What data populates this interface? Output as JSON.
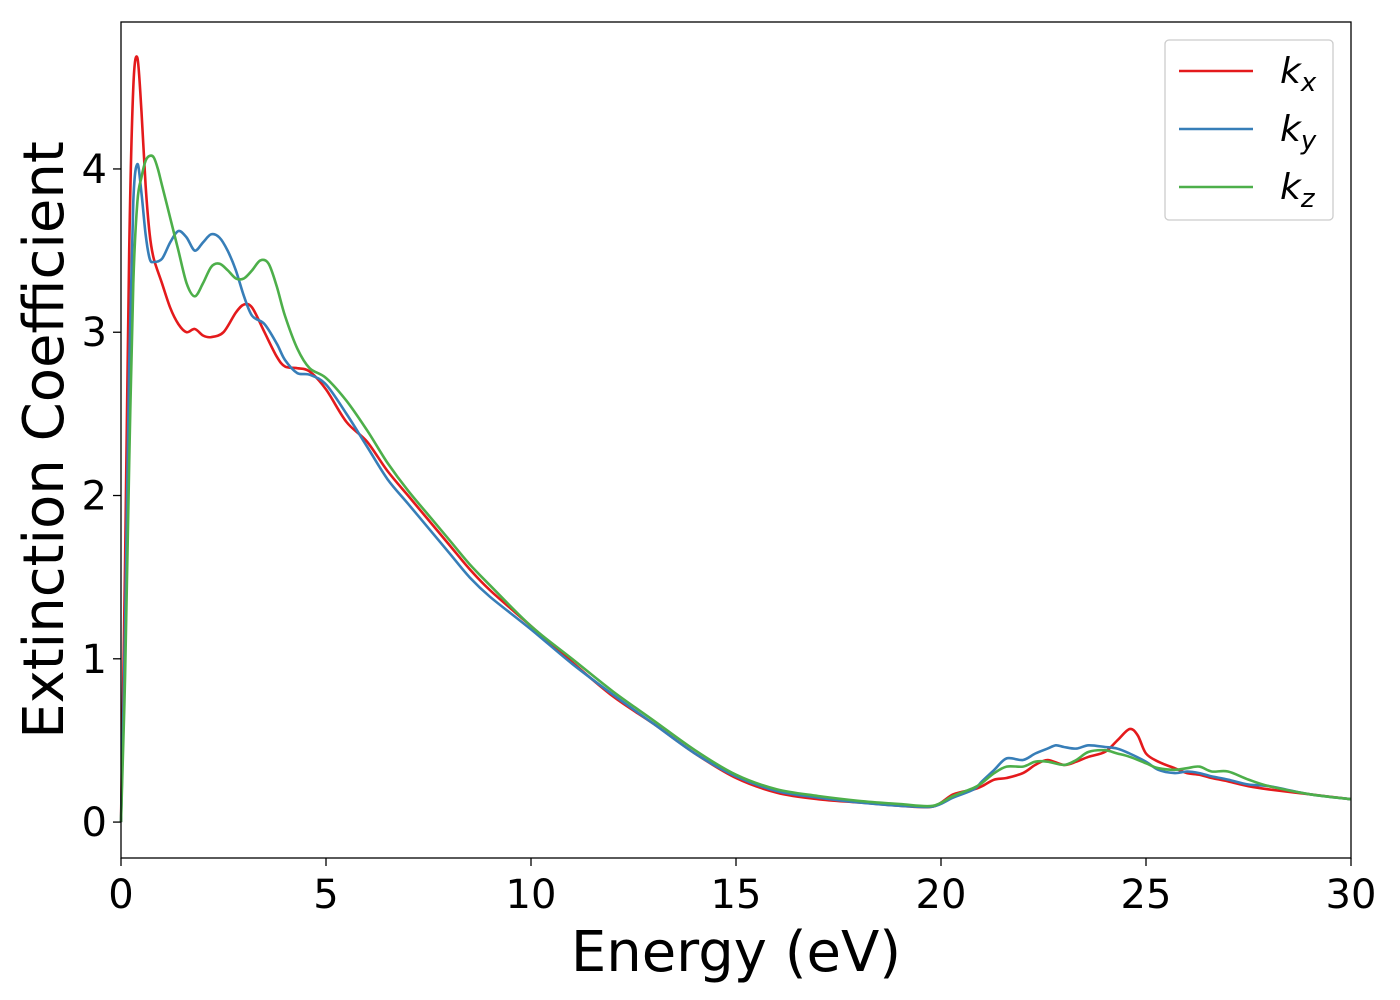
{
  "chart_data": {
    "type": "line",
    "xlabel": "Energy (eV)",
    "ylabel": "Extinction Coefficient",
    "xlim": [
      0,
      30
    ],
    "ylim": [
      -0.22,
      4.9
    ],
    "xticks": [
      0,
      5,
      10,
      15,
      20,
      25,
      30
    ],
    "xtick_labels": [
      "0",
      "5",
      "10",
      "15",
      "20",
      "25",
      "30"
    ],
    "yticks": [
      0,
      1,
      2,
      3,
      4
    ],
    "ytick_labels": [
      "0",
      "1",
      "2",
      "3",
      "4"
    ],
    "grid": false,
    "legend_position": "top-right",
    "series": [
      {
        "name": "kx",
        "label_main": "k",
        "label_sub": "x",
        "color": "#e41a1c",
        "x": [
          0,
          0.1,
          0.2,
          0.3,
          0.4,
          0.5,
          0.6,
          0.7,
          0.8,
          1.0,
          1.2,
          1.4,
          1.6,
          1.8,
          2.0,
          2.2,
          2.5,
          2.8,
          3.0,
          3.2,
          3.5,
          3.8,
          4.0,
          4.3,
          4.6,
          5.0,
          5.5,
          6.0,
          6.5,
          7.0,
          7.5,
          8.0,
          8.5,
          9.0,
          10.0,
          11.0,
          12.0,
          13.0,
          14.0,
          15.0,
          16.0,
          17.0,
          18.0,
          19.0,
          19.8,
          20.3,
          20.8,
          21.0,
          21.3,
          21.6,
          22.0,
          22.3,
          22.6,
          23.0,
          23.3,
          23.6,
          24.0,
          24.3,
          24.6,
          24.8,
          25.0,
          25.3,
          25.7,
          26.0,
          26.3,
          26.6,
          27.0,
          27.5,
          28.0,
          29.0,
          30.0
        ],
        "y": [
          0,
          1.6,
          3.5,
          4.5,
          4.68,
          4.35,
          3.9,
          3.6,
          3.45,
          3.3,
          3.15,
          3.05,
          3.0,
          3.02,
          2.98,
          2.97,
          3.0,
          3.12,
          3.17,
          3.15,
          3.0,
          2.85,
          2.79,
          2.78,
          2.76,
          2.65,
          2.45,
          2.33,
          2.15,
          2.0,
          1.85,
          1.7,
          1.55,
          1.42,
          1.2,
          0.98,
          0.77,
          0.6,
          0.42,
          0.27,
          0.18,
          0.14,
          0.12,
          0.1,
          0.095,
          0.17,
          0.2,
          0.22,
          0.26,
          0.27,
          0.3,
          0.35,
          0.38,
          0.35,
          0.37,
          0.4,
          0.43,
          0.5,
          0.57,
          0.53,
          0.42,
          0.37,
          0.33,
          0.3,
          0.29,
          0.27,
          0.25,
          0.22,
          0.2,
          0.17,
          0.14
        ]
      },
      {
        "name": "ky",
        "label_main": "k",
        "label_sub": "y",
        "color": "#377eb8",
        "x": [
          0,
          0.1,
          0.2,
          0.3,
          0.4,
          0.5,
          0.6,
          0.7,
          0.8,
          1.0,
          1.2,
          1.4,
          1.6,
          1.8,
          2.0,
          2.2,
          2.4,
          2.6,
          2.8,
          3.0,
          3.2,
          3.5,
          3.8,
          4.0,
          4.3,
          4.6,
          5.0,
          5.5,
          6.0,
          6.5,
          7.0,
          7.5,
          8.0,
          8.5,
          9.0,
          10.0,
          11.0,
          12.0,
          13.0,
          14.0,
          15.0,
          16.0,
          17.0,
          18.0,
          19.0,
          19.8,
          20.3,
          20.8,
          21.0,
          21.3,
          21.6,
          22.0,
          22.3,
          22.6,
          22.8,
          23.0,
          23.3,
          23.6,
          24.0,
          24.3,
          24.6,
          25.0,
          25.3,
          25.7,
          26.0,
          26.3,
          26.6,
          27.0,
          27.5,
          28.0,
          29.0,
          30.0
        ],
        "y": [
          0,
          1.2,
          2.8,
          3.8,
          4.03,
          3.85,
          3.6,
          3.45,
          3.43,
          3.45,
          3.55,
          3.62,
          3.58,
          3.5,
          3.55,
          3.6,
          3.58,
          3.5,
          3.38,
          3.22,
          3.1,
          3.05,
          2.93,
          2.83,
          2.75,
          2.74,
          2.68,
          2.5,
          2.3,
          2.1,
          1.95,
          1.8,
          1.65,
          1.5,
          1.38,
          1.18,
          0.97,
          0.78,
          0.6,
          0.42,
          0.28,
          0.19,
          0.15,
          0.12,
          0.1,
          0.095,
          0.15,
          0.2,
          0.25,
          0.32,
          0.39,
          0.38,
          0.42,
          0.45,
          0.47,
          0.46,
          0.45,
          0.47,
          0.46,
          0.45,
          0.42,
          0.37,
          0.32,
          0.3,
          0.31,
          0.3,
          0.28,
          0.26,
          0.23,
          0.22,
          0.17,
          0.14
        ]
      },
      {
        "name": "kz",
        "label_main": "k",
        "label_sub": "z",
        "color": "#4daf4a",
        "x": [
          0,
          0.1,
          0.2,
          0.3,
          0.4,
          0.5,
          0.6,
          0.7,
          0.8,
          0.9,
          1.0,
          1.2,
          1.4,
          1.6,
          1.8,
          2.0,
          2.2,
          2.4,
          2.6,
          2.8,
          3.0,
          3.2,
          3.4,
          3.6,
          3.8,
          4.0,
          4.3,
          4.6,
          5.0,
          5.5,
          6.0,
          6.5,
          7.0,
          7.5,
          8.0,
          8.5,
          9.0,
          10.0,
          11.0,
          12.0,
          13.0,
          14.0,
          15.0,
          16.0,
          17.0,
          18.0,
          19.0,
          19.8,
          20.3,
          20.8,
          21.0,
          21.3,
          21.6,
          22.0,
          22.3,
          22.6,
          23.0,
          23.3,
          23.6,
          24.0,
          24.3,
          24.6,
          25.0,
          25.3,
          25.7,
          26.0,
          26.3,
          26.6,
          27.0,
          27.5,
          28.0,
          29.0,
          30.0
        ],
        "y": [
          0,
          0.9,
          2.2,
          3.3,
          3.8,
          3.95,
          4.05,
          4.08,
          4.07,
          4.0,
          3.9,
          3.7,
          3.5,
          3.3,
          3.22,
          3.3,
          3.4,
          3.42,
          3.38,
          3.33,
          3.33,
          3.38,
          3.44,
          3.42,
          3.28,
          3.1,
          2.9,
          2.78,
          2.72,
          2.58,
          2.4,
          2.2,
          2.03,
          1.88,
          1.73,
          1.58,
          1.45,
          1.2,
          1.0,
          0.8,
          0.62,
          0.44,
          0.29,
          0.2,
          0.16,
          0.13,
          0.11,
          0.1,
          0.16,
          0.21,
          0.24,
          0.3,
          0.34,
          0.34,
          0.37,
          0.37,
          0.35,
          0.38,
          0.43,
          0.44,
          0.42,
          0.4,
          0.36,
          0.33,
          0.32,
          0.33,
          0.34,
          0.31,
          0.31,
          0.26,
          0.22,
          0.17,
          0.14
        ]
      }
    ]
  }
}
